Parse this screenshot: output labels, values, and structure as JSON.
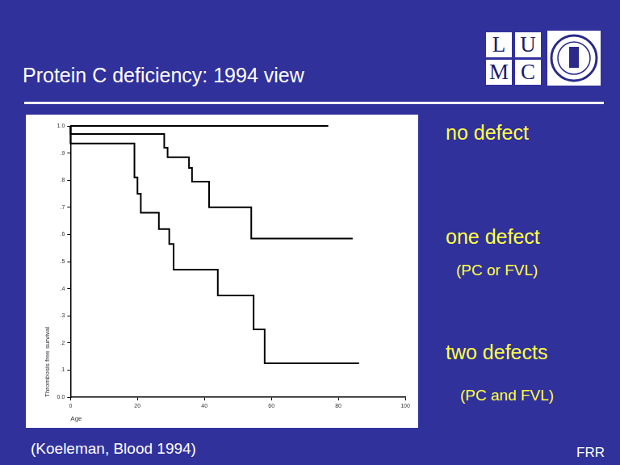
{
  "chart_data": {
    "type": "line",
    "line_style": "step",
    "x_label": "Age",
    "y_label": "Thrombosis free survival",
    "xlim": [
      0,
      100
    ],
    "xticks": [
      0,
      20,
      40,
      60,
      80,
      100
    ],
    "ylim": [
      0,
      1
    ],
    "yticks": [
      {
        "value": 0,
        "label": "0.0"
      },
      {
        "value": 0.1,
        "label": ".1"
      },
      {
        "value": 0.2,
        "label": ".2"
      },
      {
        "value": 0.3,
        "label": ".3"
      },
      {
        "value": 0.4,
        "label": ".4"
      },
      {
        "value": 0.5,
        "label": ".5"
      },
      {
        "value": 0.6,
        "label": ".6"
      },
      {
        "value": 0.7,
        "label": ".7"
      },
      {
        "value": 0.8,
        "label": ".8"
      },
      {
        "value": 0.9,
        "label": ".9"
      },
      {
        "value": 1,
        "label": "1.0"
      }
    ],
    "grid": false,
    "series": [
      {
        "name": "no defect",
        "color": "#000000",
        "x": [
          0,
          77
        ],
        "values": [
          1,
          1
        ]
      },
      {
        "name": "one defect",
        "color": "#000000",
        "x": [
          0,
          28,
          29,
          35.4,
          36.3,
          41.4,
          54,
          64.2,
          84.3
        ],
        "values": [
          1,
          0.97,
          0.92,
          0.885,
          0.845,
          0.795,
          0.7,
          0.585,
          0.585
        ]
      },
      {
        "name": "two defects",
        "color": "#000000",
        "x": [
          0,
          19.1,
          20,
          21,
          26.4,
          29.5,
          30.8,
          44,
          54.7,
          58,
          71.2,
          86.2
        ],
        "values": [
          1,
          0.935,
          0.81,
          0.75,
          0.68,
          0.62,
          0.565,
          0.47,
          0.375,
          0.25,
          0.125,
          0.125
        ]
      }
    ]
  },
  "slide": {
    "title": "Protein C deficiency: 1994 view",
    "logo": [
      "L",
      "U",
      "M",
      "C"
    ],
    "series_notes": {
      "one defect": "(PC or FVL)",
      "two defects": "(PC and FVL)"
    },
    "source": "(Koeleman, Blood 1994)",
    "footer": "FRR"
  }
}
